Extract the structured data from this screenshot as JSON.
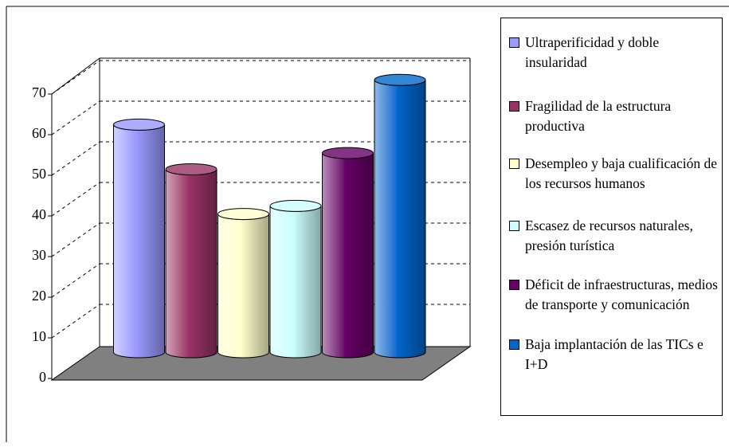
{
  "chart_data": {
    "type": "bar",
    "categories": [
      "Ultraperificidad y doble insularidad",
      "Fragilidad de la estructura productiva",
      "Desempleo y baja cualificación de los recursos humanos",
      "Escasez de recursos naturales, presión turística",
      "Déficit de infraestructuras, medios de transporte y comunicación",
      "Baja implantación de las TICs e I+D"
    ],
    "series": [
      {
        "name": "Ultraperificidad y doble insularidad",
        "color": "#9999ff",
        "values": [
          56,
          null,
          null,
          null,
          null,
          null
        ]
      },
      {
        "name": "Fragilidad de la estructura productiva",
        "color": "#993366",
        "values": [
          null,
          45,
          null,
          null,
          null,
          null
        ]
      },
      {
        "name": "Desempleo y baja cualificación de los recursos humanos",
        "color": "#ffffcc",
        "values": [
          null,
          null,
          34,
          null,
          null,
          null
        ]
      },
      {
        "name": "Escasez de recursos naturales, presión turística",
        "color": "#ccffff",
        "values": [
          null,
          null,
          null,
          36,
          null,
          null
        ]
      },
      {
        "name": "Déficit de infraestructuras, medios de transporte y comunicación",
        "color": "#660066",
        "values": [
          null,
          null,
          null,
          null,
          49,
          null
        ]
      },
      {
        "name": "Baja implantación de las TICs e I+D",
        "color": "#0066cc",
        "values": [
          null,
          null,
          null,
          null,
          null,
          67
        ]
      }
    ],
    "ylim": [
      0,
      70
    ],
    "yticks": [
      0,
      10,
      20,
      30,
      40,
      50,
      60,
      70
    ],
    "grid": true,
    "legend": "right"
  }
}
